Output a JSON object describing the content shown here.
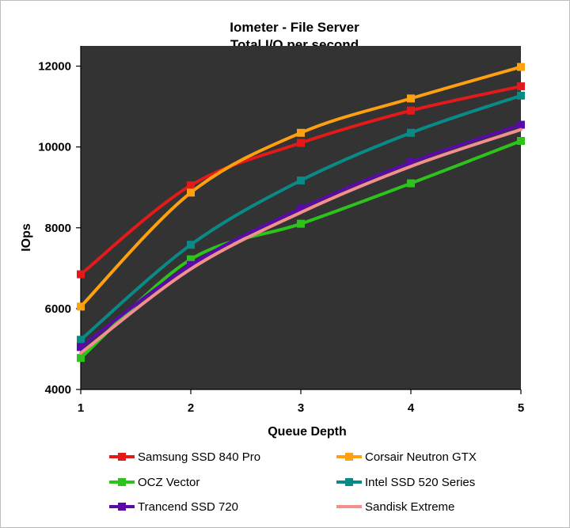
{
  "chart_data": {
    "type": "line",
    "title": [
      "Iometer - File Server",
      "Total I/O per second"
    ],
    "xlabel": "Queue Depth",
    "ylabel": "IOps",
    "x": [
      1,
      2,
      3,
      4,
      5
    ],
    "xlim": [
      1,
      5
    ],
    "ylim": [
      4000,
      12500
    ],
    "yticks": [
      4000,
      6000,
      8000,
      10000,
      12000
    ],
    "grid": false,
    "plot_background": "#333333",
    "legend_position": "bottom",
    "series": [
      {
        "name": "Samsung SSD 840 Pro",
        "color": "#e41a1a",
        "values": [
          6850,
          9050,
          10100,
          10900,
          11500
        ]
      },
      {
        "name": "Corsair Neutron GTX",
        "color": "#ffa010",
        "values": [
          6050,
          8870,
          10350,
          11200,
          11980
        ]
      },
      {
        "name": "OCZ Vector",
        "color": "#2ec21c",
        "values": [
          4780,
          7220,
          8100,
          9100,
          10150
        ]
      },
      {
        "name": "Intel SSD 520 Series",
        "color": "#0a8a86",
        "values": [
          5230,
          7580,
          9170,
          10350,
          11270
        ]
      },
      {
        "name": "Trancend SSD 720",
        "color": "#5a0aa8",
        "values": [
          5050,
          7080,
          8480,
          9620,
          10550
        ]
      },
      {
        "name": "Sandisk Extreme",
        "color": "#f29090",
        "values": [
          4900,
          6980,
          8380,
          9520,
          10430
        ],
        "markers": false
      }
    ]
  }
}
